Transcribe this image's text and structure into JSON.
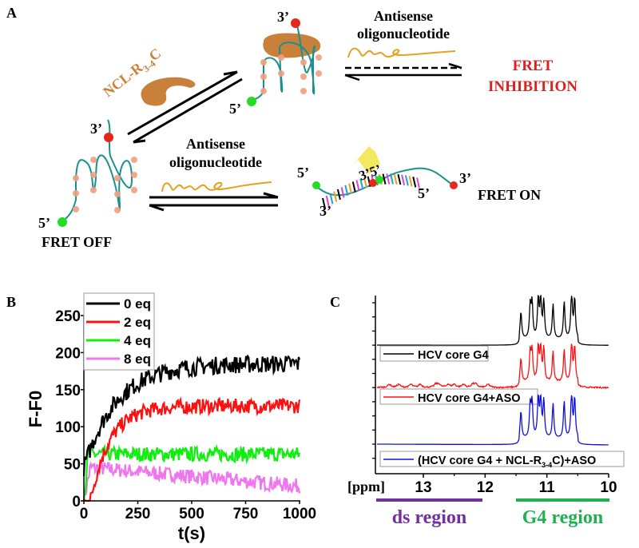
{
  "panel_a": {
    "label": "A",
    "protein_label": "NCL-R",
    "protein_sub": "3-4",
    "protein_suffix": "C",
    "aso_label_1": "Antisense",
    "aso_label_2": "oligonucleotide",
    "aso_top_label_1": "Antisense",
    "aso_top_label_2": "oligonucleotide",
    "fret_off": "FRET OFF",
    "fret_on": "FRET ON",
    "fret_inhibition_1": "FRET",
    "fret_inhibition_2": "INHIBITION",
    "end3": "3’",
    "end5": "5’",
    "end35": "3’5’",
    "colors": {
      "strand": "#1a9090",
      "donor": "#22dd22",
      "acceptor": "#e8261a",
      "protein": "#c8803a",
      "aso": "#e8a020",
      "inhibition": "#e02020",
      "quartet": "#f0a080",
      "flash": "#f4e860"
    }
  },
  "chart_data": [
    {
      "panel": "B",
      "type": "line",
      "title": "",
      "xlabel": "t(s)",
      "ylabel": "F-F0",
      "xlim": [
        0,
        1000
      ],
      "ylim": [
        0,
        250
      ],
      "xticks": [
        0,
        250,
        500,
        750,
        1000
      ],
      "yticks": [
        0,
        50,
        100,
        150,
        200,
        250
      ],
      "legend": "top-left",
      "series": [
        {
          "name": "0 eq",
          "color": "#000000",
          "plateau": 185,
          "rise_tau": 150,
          "start": 45,
          "noise": 12
        },
        {
          "name": "2 eq",
          "color": "#ff1010",
          "plateau": 128,
          "rise_tau": 90,
          "start": 0,
          "noise": 10
        },
        {
          "name": "4 eq",
          "color": "#10ee10",
          "plateau": 63,
          "rise_tau": 10,
          "start": 40,
          "noise": 10
        },
        {
          "name": "8 eq",
          "color": "#ee77ee",
          "plateau": 20,
          "rise_tau": 10,
          "start": 30,
          "noise": 10,
          "peak": 45
        }
      ]
    },
    {
      "panel": "C",
      "type": "line",
      "title": "",
      "xlabel": "[ppm]",
      "ylabel": "",
      "xlim": [
        13.8,
        10
      ],
      "xticks": [
        13,
        12,
        11,
        10
      ],
      "legend": "inline",
      "regions": [
        {
          "name": "ds region",
          "from": 13.8,
          "to": 12,
          "color": "#7030a0"
        },
        {
          "name": "G4 region",
          "from": 11.5,
          "to": 10,
          "color": "#20b050"
        }
      ],
      "g4_peaks_ppm": [
        11.42,
        11.27,
        11.24,
        11.14,
        11.1,
        11.05,
        10.9,
        10.72,
        10.6,
        10.55
      ],
      "g4_peak_heights": [
        0.55,
        0.65,
        0.7,
        0.8,
        0.8,
        0.75,
        0.7,
        0.75,
        0.95,
        0.8
      ],
      "ds_peaks_ppm": [
        13.55,
        13.4,
        13.2,
        13.05,
        12.8,
        12.75,
        12.6,
        12.5,
        12.35,
        12.2,
        12.15,
        11.95
      ],
      "series": [
        {
          "name": "HCV core G4",
          "color": "#000000",
          "has_ds": false
        },
        {
          "name": "HCV core G4+ASO",
          "color": "#ff1010",
          "has_ds": true
        },
        {
          "name": "(HCV core G4 + NCL-R3-4C)+ASO",
          "color": "#1010dd",
          "has_ds": false,
          "legend_prefix": "(HCV core G4 + NCL-R",
          "legend_sub": "3-4",
          "legend_suffix": "C)+ASO"
        }
      ]
    }
  ],
  "panel_b": {
    "label": "B"
  },
  "panel_c": {
    "label": "C",
    "ppm_label": "[ppm]",
    "ds_region": "ds region",
    "g4_region": "G4 region"
  }
}
